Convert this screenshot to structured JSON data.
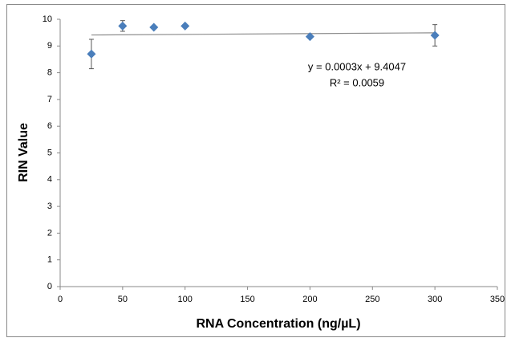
{
  "chart_data": {
    "type": "scatter",
    "x_label": "RNA Concentration (ng/µL)",
    "y_label": "RIN Value",
    "series": [
      {
        "color": "#4a7ebb",
        "x": [
          25,
          50,
          75,
          100,
          200,
          300
        ],
        "values": [
          8.7,
          9.75,
          9.7,
          9.75,
          9.35,
          9.4
        ],
        "errors": [
          0.55,
          0.2,
          0.03,
          0.05,
          0.05,
          0.4
        ]
      }
    ],
    "trendline": {
      "color": "#8c8c8c",
      "equation": "y = 0.0003x + 9.4047",
      "r_squared": "R² = 0.0059"
    },
    "xlim": [
      0,
      350
    ],
    "xticks": [
      0,
      50,
      100,
      150,
      200,
      250,
      300,
      350
    ],
    "ylim": [
      0,
      10
    ],
    "yticks": [
      0,
      1,
      2,
      3,
      4,
      5,
      6,
      7,
      8,
      9,
      10
    ],
    "grid": false
  }
}
